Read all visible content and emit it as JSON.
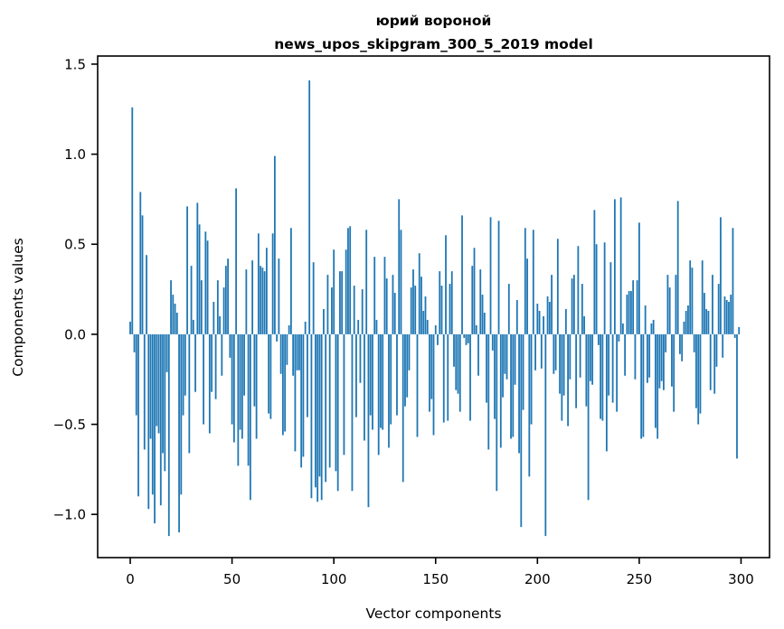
{
  "chart_data": {
    "type": "bar",
    "title_line1": "юрий вороной",
    "title_line2": "news_upos_skipgram_300_5_2019 model",
    "xlabel": "Vector components",
    "ylabel": "Components values",
    "bar_color": "#1f77b4",
    "background_color": "#ffffff",
    "x_start": 0,
    "n_components": 300,
    "bar_width_units": 0.8,
    "xlim": [
      -16,
      314
    ],
    "ylim": [
      -1.24,
      1.545
    ],
    "grid": false,
    "legend": "none",
    "xticks": [
      {
        "v": 0,
        "label": "0"
      },
      {
        "v": 50,
        "label": "50"
      },
      {
        "v": 100,
        "label": "100"
      },
      {
        "v": 150,
        "label": "150"
      },
      {
        "v": 200,
        "label": "200"
      },
      {
        "v": 250,
        "label": "250"
      },
      {
        "v": 300,
        "label": "300"
      }
    ],
    "yticks": [
      {
        "v": -1.0,
        "label": "−1.0"
      },
      {
        "v": -0.5,
        "label": "−0.5"
      },
      {
        "v": 0.0,
        "label": "0.0"
      },
      {
        "v": 0.5,
        "label": "0.5"
      },
      {
        "v": 1.0,
        "label": "1.0"
      },
      {
        "v": 1.5,
        "label": "1.5"
      }
    ],
    "values": [
      0.07,
      1.26,
      -0.1,
      -0.45,
      -0.9,
      0.79,
      0.66,
      -0.64,
      0.44,
      -0.97,
      -0.58,
      -0.89,
      -1.05,
      -0.51,
      -0.55,
      -0.95,
      -0.66,
      -0.76,
      -0.21,
      -1.12,
      0.3,
      0.22,
      0.17,
      0.12,
      -1.1,
      -0.89,
      -0.45,
      -0.34,
      0.71,
      -0.66,
      0.38,
      0.08,
      -0.32,
      0.73,
      0.61,
      0.3,
      -0.5,
      0.57,
      0.52,
      -0.55,
      -0.32,
      0.18,
      -0.36,
      0.3,
      0.1,
      -0.23,
      0.26,
      0.38,
      0.42,
      -0.13,
      -0.5,
      -0.6,
      0.81,
      -0.73,
      -0.53,
      -0.58,
      -0.34,
      0.36,
      -0.73,
      -0.92,
      0.41,
      -0.4,
      -0.58,
      0.56,
      0.38,
      0.37,
      0.35,
      0.48,
      -0.44,
      -0.47,
      0.56,
      0.99,
      -0.04,
      0.42,
      -0.22,
      -0.56,
      -0.54,
      -0.17,
      0.05,
      0.59,
      -0.23,
      -0.65,
      -0.2,
      -0.2,
      -0.74,
      -0.68,
      0.07,
      -0.46,
      1.41,
      -0.91,
      0.4,
      -0.85,
      -0.93,
      -0.79,
      -0.92,
      0.14,
      -0.82,
      0.33,
      -0.74,
      0.26,
      0.47,
      -0.76,
      -0.87,
      0.35,
      0.35,
      -0.67,
      0.47,
      0.59,
      0.6,
      -0.87,
      0.27,
      -0.46,
      0.08,
      -0.27,
      0.25,
      -0.59,
      0.58,
      -0.96,
      -0.45,
      -0.53,
      0.43,
      0.08,
      -0.67,
      -0.52,
      -0.53,
      0.43,
      0.31,
      -0.63,
      -0.5,
      0.33,
      0.23,
      -0.45,
      0.75,
      0.58,
      -0.82,
      -0.4,
      -0.35,
      -0.2,
      0.26,
      0.36,
      0.27,
      -0.57,
      0.45,
      0.32,
      0.13,
      0.21,
      0.08,
      -0.43,
      -0.36,
      -0.56,
      0.05,
      -0.06,
      0.35,
      0.27,
      -0.49,
      0.55,
      -0.48,
      0.28,
      0.35,
      -0.18,
      -0.31,
      -0.33,
      -0.43,
      0.66,
      -0.02,
      -0.06,
      -0.05,
      -0.48,
      0.38,
      0.48,
      0.05,
      -0.23,
      0.36,
      0.22,
      0.12,
      -0.38,
      -0.64,
      0.65,
      -0.09,
      -0.47,
      -0.87,
      0.63,
      -0.63,
      -0.35,
      -0.22,
      -0.25,
      0.28,
      -0.58,
      -0.57,
      -0.28,
      0.19,
      -0.66,
      -1.07,
      -0.42,
      0.59,
      0.42,
      -0.79,
      -0.5,
      0.58,
      -0.2,
      0.17,
      0.13,
      -0.19,
      0.1,
      -1.12,
      0.21,
      0.18,
      0.33,
      -0.22,
      -0.2,
      0.53,
      -0.33,
      -0.48,
      -0.34,
      0.14,
      -0.51,
      -0.25,
      0.31,
      0.33,
      -0.41,
      0.49,
      -0.24,
      0.28,
      0.1,
      -0.4,
      -0.92,
      -0.26,
      -0.28,
      0.69,
      0.5,
      -0.06,
      -0.47,
      -0.48,
      0.51,
      -0.65,
      -0.34,
      0.4,
      -0.38,
      0.75,
      -0.43,
      -0.04,
      0.76,
      0.06,
      -0.23,
      0.22,
      0.24,
      0.24,
      0.3,
      -0.25,
      0.3,
      0.62,
      -0.58,
      -0.57,
      0.16,
      -0.27,
      -0.24,
      0.06,
      0.08,
      -0.52,
      -0.58,
      -0.3,
      -0.26,
      -0.31,
      -0.1,
      0.33,
      0.26,
      -0.29,
      -0.43,
      0.33,
      0.74,
      -0.11,
      -0.15,
      0.07,
      0.13,
      0.16,
      0.41,
      0.37,
      -0.1,
      -0.41,
      -0.5,
      -0.44,
      0.41,
      0.23,
      0.14,
      0.13,
      -0.31,
      0.33,
      -0.33,
      -0.18,
      0.28,
      0.65,
      -0.13,
      0.21,
      0.19,
      0.18,
      0.22,
      0.59,
      -0.02,
      -0.69,
      0.04
    ]
  }
}
